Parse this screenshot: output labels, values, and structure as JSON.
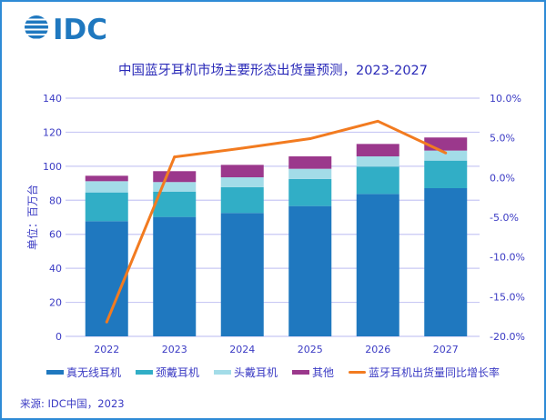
{
  "logo": {
    "text": "IDC"
  },
  "chart_data": {
    "type": "bar",
    "title": "中国蓝牙耳机市场主要形态出货量预测，2023-2027",
    "stacked": true,
    "categories": [
      "2022",
      "2023",
      "2024",
      "2025",
      "2026",
      "2027"
    ],
    "ylabel": "单位：百万台",
    "ylim": [
      0,
      140
    ],
    "yticks": [
      "0",
      "20",
      "40",
      "60",
      "80",
      "100",
      "120",
      "140"
    ],
    "y2lim": [
      -20,
      10
    ],
    "y2ticks": [
      "-20.0%",
      "-15.0%",
      "-10.0%",
      "-5.0%",
      "0.0%",
      "5.0%",
      "10.0%"
    ],
    "grid": true,
    "legend_placement": "bottom",
    "series": [
      {
        "name": "真无线耳机",
        "color": "#1f78bf",
        "values": [
          67.7,
          70.2,
          72.5,
          76.6,
          83.7,
          87.1
        ]
      },
      {
        "name": "颈戴耳机",
        "color": "#31aec6",
        "values": [
          16.9,
          14.9,
          15.2,
          15.9,
          16.1,
          16.2
        ]
      },
      {
        "name": "头戴耳机",
        "color": "#a3dce8",
        "values": [
          6.6,
          5.6,
          5.8,
          6.0,
          6.0,
          5.9
        ]
      },
      {
        "name": "其他",
        "color": "#9b388c",
        "values": [
          3.2,
          6.4,
          7.3,
          7.3,
          7.3,
          7.7
        ]
      }
    ],
    "line_series": {
      "name": "蓝牙耳机出货量同比增长率",
      "color": "#f27b20",
      "axis": "right",
      "unit": "%",
      "values": [
        -18.2,
        2.6,
        3.7,
        4.9,
        7.1,
        3.1
      ]
    }
  },
  "source": "来源: IDC中国，2023"
}
